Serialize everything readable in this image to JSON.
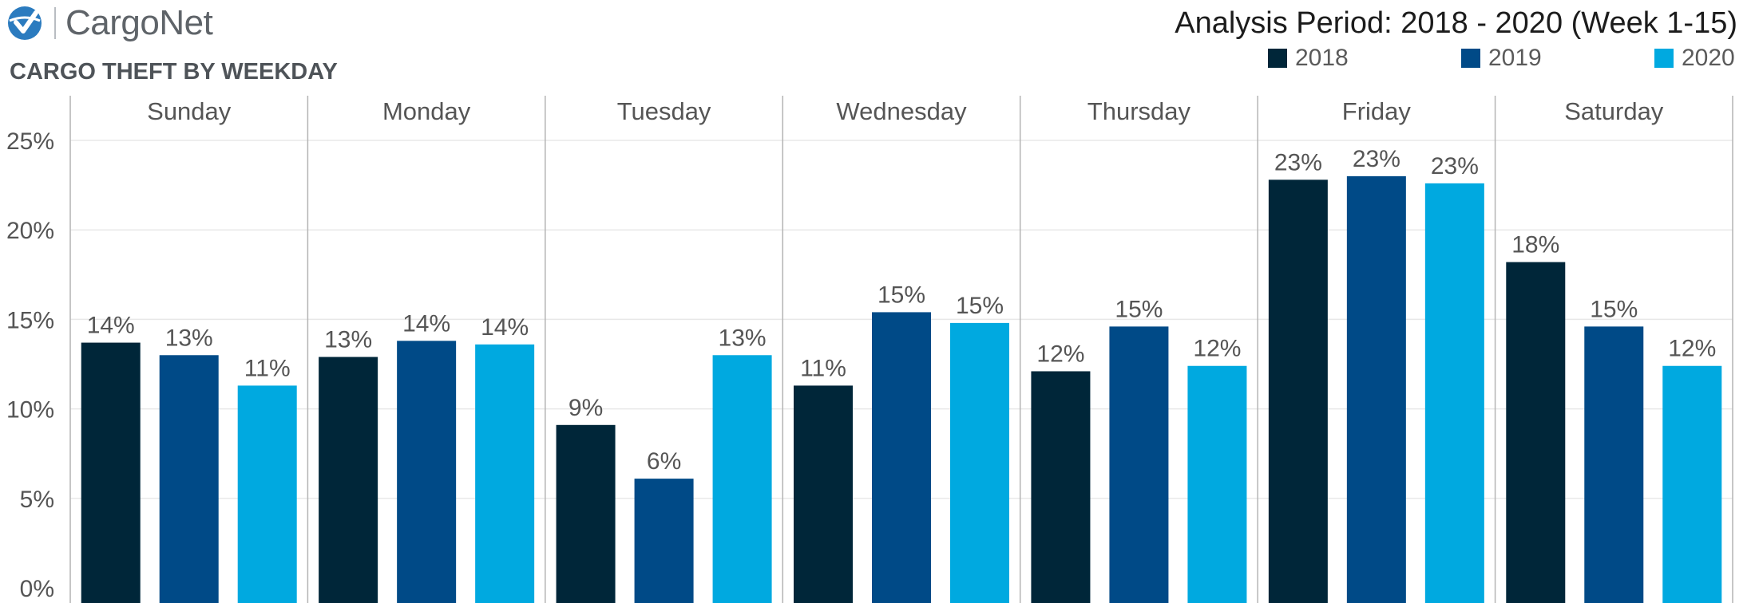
{
  "header": {
    "brand": "CargoNet",
    "subtitle": "CARGO THEFT BY WEEKDAY",
    "period": "Analysis Period: 2018 - 2020 (Week 1-15)"
  },
  "colors": {
    "brand_icon": "#2b7bbf",
    "grid": "#e8e8e8",
    "divider": "#b4b4b4",
    "label_text": "#555555"
  },
  "chart_data": {
    "type": "bar",
    "subtitle": "CARGO THEFT BY WEEKDAY",
    "categories": [
      "Sunday",
      "Monday",
      "Tuesday",
      "Wednesday",
      "Thursday",
      "Friday",
      "Saturday"
    ],
    "series": [
      {
        "name": "2018",
        "color": "#002639",
        "values": [
          13.7,
          12.9,
          9.1,
          11.3,
          12.1,
          22.8,
          18.2
        ],
        "labels": [
          "14%",
          "13%",
          "9%",
          "11%",
          "12%",
          "23%",
          "18%"
        ]
      },
      {
        "name": "2019",
        "color": "#004a87",
        "values": [
          13.0,
          13.8,
          6.1,
          15.4,
          14.6,
          23.0,
          14.6
        ],
        "labels": [
          "13%",
          "14%",
          "6%",
          "15%",
          "15%",
          "23%",
          "15%"
        ]
      },
      {
        "name": "2020",
        "color": "#00a9e0",
        "values": [
          11.3,
          13.6,
          13.0,
          14.8,
          12.4,
          22.6,
          12.4
        ],
        "labels": [
          "11%",
          "14%",
          "13%",
          "15%",
          "12%",
          "23%",
          "12%"
        ]
      }
    ],
    "yticks": [
      "0%",
      "5%",
      "10%",
      "15%",
      "20%",
      "25%"
    ],
    "ytick_values": [
      0,
      5,
      10,
      15,
      20,
      25
    ],
    "ylim": [
      0,
      27.3
    ],
    "legend_position": "top-right",
    "grid": true
  }
}
